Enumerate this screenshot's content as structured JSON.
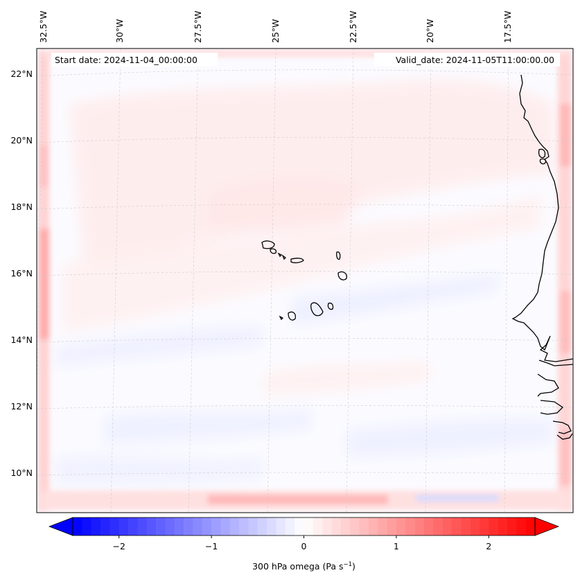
{
  "map": {
    "start_date": "Start date: 2024-11-04_00:00:00",
    "valid_date": "Valid_date: 2024-11-05T11:00:00.00",
    "lon_labels": [
      "32.5°W",
      "30°W",
      "27.5°W",
      "25°W",
      "22.5°W",
      "20°W",
      "17.5°W"
    ],
    "lat_labels": [
      "22°N",
      "20°N",
      "18°N",
      "16°N",
      "14°N",
      "12°N",
      "10°N"
    ],
    "gridlines": true,
    "field_colors": {
      "positive": "#ff0000",
      "negative": "#0000ff",
      "neutral": "#ffffff"
    }
  },
  "colorbar": {
    "ticks": [
      "−2",
      "−1",
      "0",
      "1",
      "2"
    ],
    "tick_values": [
      -2,
      -1,
      0,
      1,
      2
    ],
    "range": [
      -2.5,
      2.5
    ],
    "label_main": "300 hPa omega (Pa s",
    "label_sup": "−1",
    "label_end": ")"
  }
}
